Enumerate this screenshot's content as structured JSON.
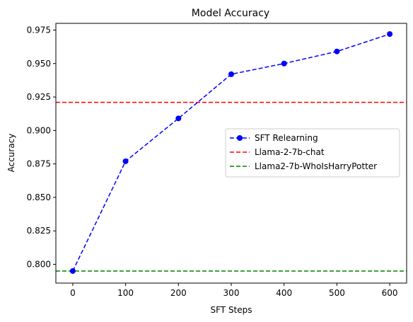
{
  "chart_data": {
    "type": "line",
    "title": "Model Accuracy",
    "xlabel": "SFT Steps",
    "ylabel": "Accuracy",
    "xlim": [
      -32,
      632
    ],
    "ylim": [
      0.786,
      0.98
    ],
    "x_ticks": [
      0,
      100,
      200,
      300,
      400,
      500,
      600
    ],
    "x_tick_labels": [
      "0",
      "100",
      "200",
      "300",
      "400",
      "500",
      "600"
    ],
    "y_ticks": [
      0.8,
      0.825,
      0.85,
      0.875,
      0.9,
      0.925,
      0.95,
      0.975
    ],
    "y_tick_labels": [
      "0.800",
      "0.825",
      "0.850",
      "0.875",
      "0.900",
      "0.925",
      "0.950",
      "0.975"
    ],
    "grid": false,
    "legend_position": "center-right",
    "series": [
      {
        "name": "SFT Relearning",
        "style": "dashed-line-with-circle-markers",
        "color": "#0000ff",
        "x": [
          0,
          100,
          200,
          300,
          400,
          500,
          600
        ],
        "y": [
          0.795,
          0.877,
          0.909,
          0.942,
          0.95,
          0.959,
          0.972
        ]
      }
    ],
    "reference_lines": [
      {
        "name": "Llama-2-7b-chat",
        "orientation": "horizontal",
        "y": 0.921,
        "style": "dashed",
        "color": "#ff0000"
      },
      {
        "name": "Llama2-7b-WhoIsHarryPotter",
        "orientation": "horizontal",
        "y": 0.795,
        "style": "dashed",
        "color": "#008000"
      }
    ]
  }
}
